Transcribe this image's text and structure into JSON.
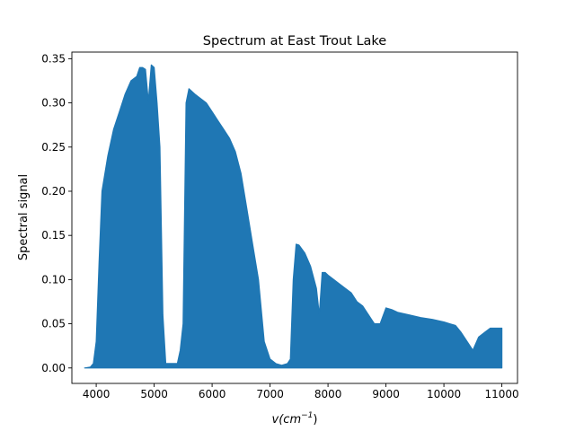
{
  "chart_data": {
    "type": "area",
    "title": "Spectrum at East Trout Lake",
    "xlabel": "v(cm",
    "xlabel_exponent": "−1",
    "xlabel_close": ")",
    "ylabel": "Spectral signal",
    "xlim": [
      3580,
      11270
    ],
    "ylim": [
      -0.0175,
      0.3575
    ],
    "xticks": [
      4000,
      5000,
      6000,
      7000,
      8000,
      9000,
      10000,
      11000
    ],
    "xtick_labels": [
      "4000",
      "5000",
      "6000",
      "7000",
      "8000",
      "9000",
      "10000",
      "11000"
    ],
    "yticks": [
      0.0,
      0.05,
      0.1,
      0.15,
      0.2,
      0.25,
      0.3,
      0.35
    ],
    "ytick_labels": [
      "0.00",
      "0.05",
      "0.10",
      "0.15",
      "0.20",
      "0.25",
      "0.30",
      "0.35"
    ],
    "grid": false,
    "color": "#1f77b4",
    "series": [
      {
        "envelope": {
          "x": [
            3800,
            3900,
            3950,
            4000,
            4050,
            4100,
            4200,
            4300,
            4400,
            4500,
            4600,
            4700,
            4750,
            4800,
            4850,
            4900,
            4950,
            5000,
            5050,
            5100,
            5150,
            5200,
            5300,
            5400,
            5450,
            5500,
            5550,
            5600,
            5700,
            5800,
            5900,
            6000,
            6100,
            6200,
            6300,
            6400,
            6500,
            6600,
            6700,
            6800,
            6900,
            7000,
            7100,
            7200,
            7300,
            7350,
            7400,
            7450,
            7500,
            7600,
            7700,
            7800,
            7850,
            7900,
            7950,
            8000,
            8100,
            8200,
            8300,
            8400,
            8500,
            8600,
            8700,
            8800,
            8900,
            9000,
            9100,
            9200,
            9400,
            9600,
            9800,
            10000,
            10100,
            10200,
            10300,
            10400,
            10500,
            10600,
            10700,
            10800,
            10900,
            11000
          ],
          "y": [
            0.0,
            0.001,
            0.005,
            0.03,
            0.12,
            0.2,
            0.24,
            0.27,
            0.29,
            0.31,
            0.325,
            0.33,
            0.34,
            0.34,
            0.338,
            0.302,
            0.343,
            0.34,
            0.3,
            0.25,
            0.06,
            0.005,
            0.005,
            0.005,
            0.02,
            0.05,
            0.3,
            0.316,
            0.31,
            0.305,
            0.3,
            0.29,
            0.28,
            0.27,
            0.26,
            0.245,
            0.22,
            0.18,
            0.14,
            0.1,
            0.03,
            0.01,
            0.005,
            0.003,
            0.005,
            0.01,
            0.1,
            0.14,
            0.139,
            0.13,
            0.115,
            0.09,
            0.06,
            0.108,
            0.108,
            0.105,
            0.1,
            0.095,
            0.09,
            0.085,
            0.075,
            0.07,
            0.06,
            0.05,
            0.05,
            0.068,
            0.066,
            0.063,
            0.06,
            0.057,
            0.055,
            0.052,
            0.05,
            0.048,
            0.04,
            0.03,
            0.02,
            0.035,
            0.04,
            0.045,
            0.045,
            0.045
          ]
        }
      }
    ]
  }
}
